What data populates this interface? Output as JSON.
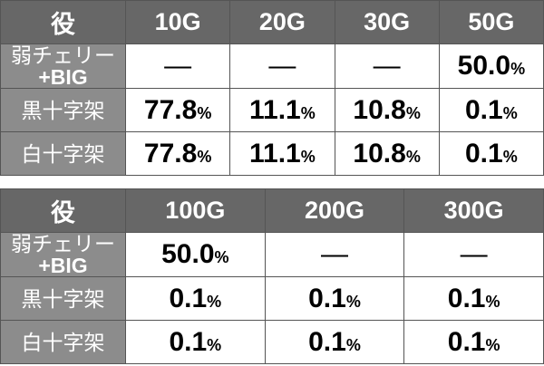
{
  "table1": {
    "headers": [
      "役",
      "10G",
      "20G",
      "30G",
      "50G"
    ],
    "rows": [
      {
        "label1": "弱チェリー",
        "label2": "+BIG",
        "values": [
          "—",
          "—",
          "—",
          "50.0"
        ],
        "pct": [
          false,
          false,
          false,
          true
        ]
      },
      {
        "label1": "黒十字架",
        "values": [
          "77.8",
          "11.1",
          "10.8",
          "0.1"
        ],
        "pct": [
          true,
          true,
          true,
          true
        ]
      },
      {
        "label1": "白十字架",
        "values": [
          "77.8",
          "11.1",
          "10.8",
          "0.1"
        ],
        "pct": [
          true,
          true,
          true,
          true
        ]
      }
    ]
  },
  "table2": {
    "headers": [
      "役",
      "100G",
      "200G",
      "300G"
    ],
    "rows": [
      {
        "label1": "弱チェリー",
        "label2": "+BIG",
        "values": [
          "50.0",
          "—",
          "—"
        ],
        "pct": [
          true,
          false,
          false
        ]
      },
      {
        "label1": "黒十字架",
        "values": [
          "0.1",
          "0.1",
          "0.1"
        ],
        "pct": [
          true,
          true,
          true
        ]
      },
      {
        "label1": "白十字架",
        "values": [
          "0.1",
          "0.1",
          "0.1"
        ],
        "pct": [
          true,
          true,
          true
        ]
      }
    ]
  },
  "percent_sign": "%",
  "colors": {
    "header_bg": "#676767",
    "label_bg": "#8c8c8c"
  }
}
